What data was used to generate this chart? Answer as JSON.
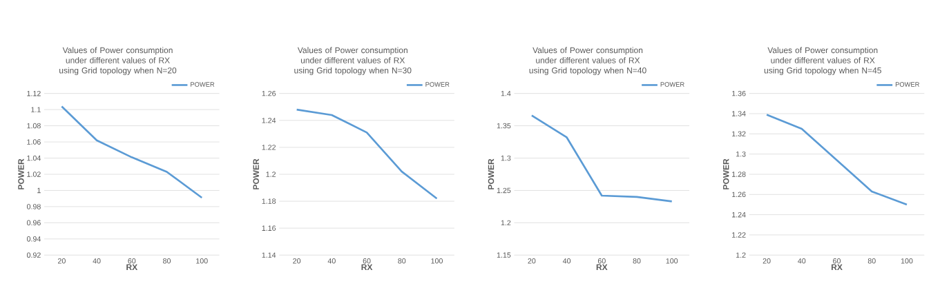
{
  "chart_data": [
    {
      "type": "line",
      "title": "Values of Power consumption under different values of RX using Grid topology when N=20",
      "xlabel": "RX",
      "ylabel": "POWER",
      "categories": [
        "20",
        "40",
        "60",
        "80",
        "100"
      ],
      "series": [
        {
          "name": "POWER",
          "color": "#5b9bd5",
          "values": [
            1.104,
            1.062,
            1.041,
            1.023,
            0.991
          ]
        }
      ],
      "ylim": [
        0.92,
        1.12
      ],
      "yticks": [
        0.92,
        0.94,
        0.96,
        0.98,
        1,
        1.02,
        1.04,
        1.06,
        1.08,
        1.1,
        1.12
      ],
      "grid": "y",
      "legend": "top right"
    },
    {
      "type": "line",
      "title": "Values of Power consumption under different values of RX using Grid topology when N=30",
      "xlabel": "RX",
      "ylabel": "POWER",
      "categories": [
        "20",
        "40",
        "60",
        "80",
        "100"
      ],
      "series": [
        {
          "name": "POWER",
          "color": "#5b9bd5",
          "values": [
            1.248,
            1.244,
            1.231,
            1.202,
            1.182
          ]
        }
      ],
      "ylim": [
        1.14,
        1.26
      ],
      "yticks": [
        1.14,
        1.16,
        1.18,
        1.2,
        1.22,
        1.24,
        1.26
      ],
      "grid": "y",
      "legend": "top right"
    },
    {
      "type": "line",
      "title": "Values of Power consumption under different values of RX using Grid topology when N=40",
      "xlabel": "RX",
      "ylabel": "POWER",
      "categories": [
        "20",
        "40",
        "60",
        "80",
        "100"
      ],
      "series": [
        {
          "name": "POWER",
          "color": "#5b9bd5",
          "values": [
            1.366,
            1.332,
            1.242,
            1.24,
            1.233
          ]
        }
      ],
      "ylim": [
        1.15,
        1.4
      ],
      "yticks": [
        1.15,
        1.2,
        1.25,
        1.3,
        1.35,
        1.4
      ],
      "grid": "y",
      "legend": "top right"
    },
    {
      "type": "line",
      "title": "Values of Power consumption under different values of RX using Grid topology when N=45",
      "xlabel": "RX",
      "ylabel": "POWER",
      "categories": [
        "20",
        "40",
        "60",
        "80",
        "100"
      ],
      "series": [
        {
          "name": "POWER",
          "color": "#5b9bd5",
          "values": [
            1.339,
            1.325,
            1.294,
            1.263,
            1.25
          ]
        }
      ],
      "ylim": [
        1.2,
        1.36
      ],
      "yticks": [
        1.2,
        1.22,
        1.24,
        1.26,
        1.28,
        1.3,
        1.32,
        1.34,
        1.36
      ],
      "grid": "y",
      "legend": "top right"
    }
  ]
}
